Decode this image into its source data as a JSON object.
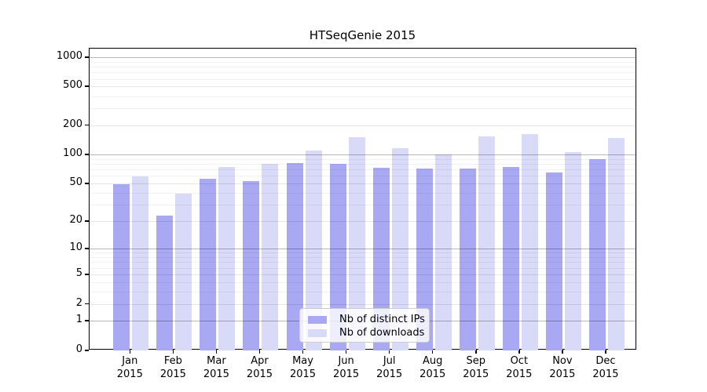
{
  "chart_data": {
    "type": "bar",
    "title": "HTSeqGenie 2015",
    "categories": [
      "Jan",
      "Feb",
      "Mar",
      "Apr",
      "May",
      "Jun",
      "Jul",
      "Aug",
      "Sep",
      "Oct",
      "Nov",
      "Dec"
    ],
    "year_label": "2015",
    "series": [
      {
        "name": "Nb of distinct IPs",
        "color": "#a8a8f3",
        "values": [
          49,
          23,
          56,
          53,
          82,
          80,
          73,
          72,
          72,
          74,
          65,
          90
        ]
      },
      {
        "name": "Nb of downloads",
        "color": "#d9d9f8",
        "values": [
          59,
          39,
          75,
          80,
          110,
          151,
          116,
          100,
          154,
          163,
          106,
          148
        ]
      }
    ],
    "yscale": "log10(1+x)",
    "yticks": [
      0,
      1,
      2,
      5,
      10,
      20,
      50,
      100,
      200,
      500,
      1000
    ],
    "minor_yticks": [
      3,
      4,
      6,
      7,
      8,
      9,
      30,
      40,
      60,
      70,
      80,
      90,
      300,
      400,
      600,
      700,
      800,
      900
    ],
    "decade_ticks": [
      1,
      10,
      100,
      1000
    ],
    "ylim": [
      0,
      1120
    ],
    "xlabel": "",
    "ylabel": "",
    "grid": "on, drawn above bars",
    "legend_position": "lower center",
    "axis_color": "#000000"
  }
}
